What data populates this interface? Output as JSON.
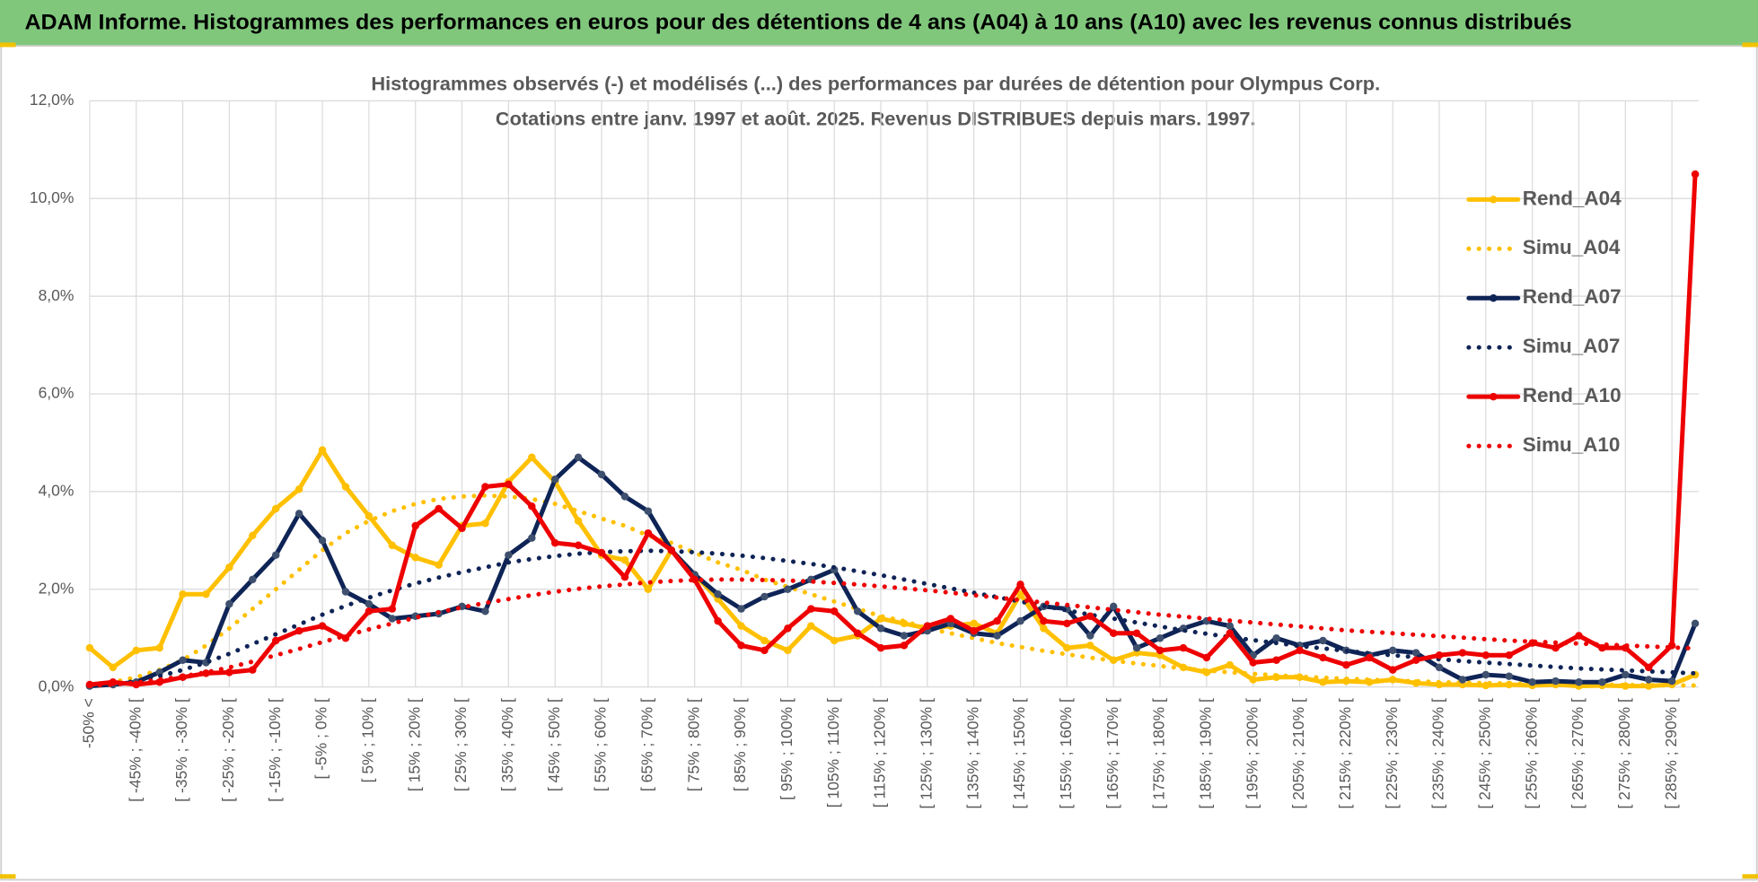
{
  "chart_data": {
    "type": "line",
    "title": "ADAM Informe. Histogrammes des performances en euros pour des détentions de 4 ans (A04) à 10 ans (A10) avec les revenus connus distribués",
    "subtitle": [
      "Histogrammes observés (-) et modélisés (...) des performances par durées de détention pour Olympus Corp.",
      "Cotations entre janv. 1997 et août. 2025. Revenus DISTRIBUES depuis mars. 1997."
    ],
    "categories": [
      "-50% <",
      null,
      "[ -45% ; -40% [",
      null,
      "[ -35% ; -30% [",
      null,
      "[ -25% ; -20% [",
      null,
      "[ -15% ; -10% [",
      null,
      "[ -5% ; 0% [",
      null,
      "[ 5% ; 10% [",
      null,
      "[ 15% ; 20% [",
      null,
      "[ 25% ; 30% [",
      null,
      "[ 35% ; 40% [",
      null,
      "[ 45% ; 50% [",
      null,
      "[ 55% ; 60% [",
      null,
      "[ 65% ; 70% [",
      null,
      "[ 75% ; 80% [",
      null,
      "[ 85% ; 90% [",
      null,
      "[ 95% ; 100% [",
      null,
      "[ 105% ; 110% [",
      null,
      "[ 115% ; 120% [",
      null,
      "[ 125% ; 130% [",
      null,
      "[ 135% ; 140% [",
      null,
      "[ 145% ; 150% [",
      null,
      "[ 155% ; 160% [",
      null,
      "[ 165% ; 170% [",
      null,
      "[ 175% ; 180% [",
      null,
      "[ 185% ; 190% [",
      null,
      "[ 195% ; 200% [",
      null,
      "[ 205% ; 210% [",
      null,
      "[ 215% ; 220% [",
      null,
      "[ 225% ; 230% [",
      null,
      "[ 235% ; 240% [",
      null,
      "[ 245% ; 250% [",
      null,
      "[ 255% ; 260% [",
      null,
      "[ 265% ; 270% [",
      null,
      "[ 275% ; 280% [",
      null,
      "[ 285% ; 290% [",
      null
    ],
    "series": [
      {
        "name": "Rend_A04",
        "color": "#ffc000",
        "line_style": "solid",
        "values": [
          0.8,
          0.4,
          0.75,
          0.8,
          1.9,
          1.9,
          2.45,
          3.1,
          3.65,
          4.05,
          4.85,
          4.1,
          3.5,
          2.9,
          2.65,
          2.5,
          3.3,
          3.35,
          4.2,
          4.7,
          4.2,
          3.4,
          2.7,
          2.6,
          2.0,
          2.8,
          2.3,
          1.8,
          1.25,
          0.95,
          0.75,
          1.25,
          0.95,
          1.05,
          1.4,
          1.3,
          1.2,
          1.25,
          1.3,
          1.1,
          1.9,
          1.2,
          0.8,
          0.85,
          0.55,
          0.7,
          0.65,
          0.4,
          0.3,
          0.45,
          0.15,
          0.2,
          0.2,
          0.1,
          0.12,
          0.1,
          0.15,
          0.08,
          0.05,
          0.05,
          0.03,
          0.05,
          0.03,
          0.05,
          0.02,
          0.03,
          0.02,
          0.02,
          0.05,
          0.25
        ]
      },
      {
        "name": "Simu_A04",
        "color": "#ffc000",
        "line_style": "dotted",
        "values": [
          0.05,
          0.1,
          0.2,
          0.35,
          0.55,
          0.85,
          1.2,
          1.6,
          2.0,
          2.4,
          2.8,
          3.15,
          3.4,
          3.6,
          3.75,
          3.85,
          3.9,
          3.92,
          3.9,
          3.85,
          3.75,
          3.6,
          3.45,
          3.3,
          3.1,
          2.95,
          2.75,
          2.55,
          2.4,
          2.2,
          2.05,
          1.9,
          1.75,
          1.6,
          1.45,
          1.35,
          1.2,
          1.1,
          1.0,
          0.9,
          0.82,
          0.74,
          0.67,
          0.6,
          0.54,
          0.48,
          0.43,
          0.38,
          0.34,
          0.3,
          0.27,
          0.24,
          0.21,
          0.19,
          0.17,
          0.15,
          0.13,
          0.12,
          0.1,
          0.09,
          0.08,
          0.07,
          0.06,
          0.06,
          0.05,
          0.05,
          0.04,
          0.04,
          0.03,
          0.03
        ]
      },
      {
        "name": "Rend_A07",
        "color": "#0f2456",
        "line_style": "solid",
        "values": [
          0.02,
          0.05,
          0.1,
          0.3,
          0.55,
          0.5,
          1.7,
          2.2,
          2.7,
          3.55,
          3.0,
          1.95,
          1.7,
          1.4,
          1.45,
          1.5,
          1.65,
          1.55,
          2.7,
          3.05,
          4.25,
          4.7,
          4.35,
          3.9,
          3.6,
          2.8,
          2.3,
          1.9,
          1.6,
          1.85,
          2.0,
          2.2,
          2.4,
          1.55,
          1.2,
          1.05,
          1.15,
          1.3,
          1.1,
          1.05,
          1.35,
          1.65,
          1.6,
          1.05,
          1.65,
          0.8,
          1.0,
          1.2,
          1.35,
          1.25,
          0.65,
          1.0,
          0.85,
          0.95,
          0.75,
          0.65,
          0.75,
          0.7,
          0.4,
          0.15,
          0.25,
          0.22,
          0.1,
          0.12,
          0.1,
          0.1,
          0.25,
          0.15,
          0.12,
          1.3
        ]
      },
      {
        "name": "Simu_A07",
        "color": "#0f2456",
        "line_style": "dotted",
        "values": [
          0.03,
          0.06,
          0.12,
          0.22,
          0.35,
          0.5,
          0.68,
          0.88,
          1.08,
          1.28,
          1.48,
          1.66,
          1.83,
          1.98,
          2.12,
          2.24,
          2.35,
          2.45,
          2.55,
          2.62,
          2.68,
          2.73,
          2.76,
          2.78,
          2.79,
          2.78,
          2.76,
          2.73,
          2.69,
          2.64,
          2.58,
          2.52,
          2.45,
          2.37,
          2.29,
          2.2,
          2.11,
          2.02,
          1.93,
          1.84,
          1.75,
          1.66,
          1.57,
          1.48,
          1.4,
          1.32,
          1.24,
          1.16,
          1.09,
          1.02,
          0.96,
          0.9,
          0.84,
          0.79,
          0.74,
          0.69,
          0.65,
          0.61,
          0.57,
          0.53,
          0.5,
          0.47,
          0.44,
          0.41,
          0.38,
          0.36,
          0.34,
          0.32,
          0.3,
          0.28
        ]
      },
      {
        "name": "Rend_A10",
        "color": "#ee0000",
        "line_style": "solid",
        "values": [
          0.05,
          0.1,
          0.05,
          0.1,
          0.2,
          0.28,
          0.3,
          0.35,
          0.95,
          1.15,
          1.25,
          1.0,
          1.55,
          1.6,
          3.3,
          3.65,
          3.25,
          4.1,
          4.15,
          3.7,
          2.95,
          2.9,
          2.75,
          2.25,
          3.15,
          2.8,
          2.2,
          1.35,
          0.85,
          0.75,
          1.2,
          1.6,
          1.55,
          1.1,
          0.8,
          0.85,
          1.25,
          1.4,
          1.15,
          1.35,
          2.1,
          1.35,
          1.3,
          1.45,
          1.1,
          1.1,
          0.75,
          0.8,
          0.6,
          1.1,
          0.5,
          0.55,
          0.75,
          0.6,
          0.45,
          0.6,
          0.35,
          0.55,
          0.65,
          0.7,
          0.65,
          0.65,
          0.9,
          0.8,
          1.05,
          0.8,
          0.8,
          0.4,
          0.85,
          10.5
        ]
      },
      {
        "name": "Simu_A10",
        "color": "#ee0000",
        "line_style": "dotted",
        "values": [
          0.03,
          0.05,
          0.09,
          0.15,
          0.22,
          0.3,
          0.4,
          0.52,
          0.65,
          0.78,
          0.92,
          1.05,
          1.18,
          1.3,
          1.42,
          1.53,
          1.63,
          1.72,
          1.8,
          1.88,
          1.95,
          2.01,
          2.06,
          2.1,
          2.14,
          2.17,
          2.19,
          2.2,
          2.2,
          2.19,
          2.18,
          2.16,
          2.13,
          2.1,
          2.06,
          2.02,
          1.98,
          1.93,
          1.88,
          1.83,
          1.78,
          1.73,
          1.68,
          1.63,
          1.58,
          1.53,
          1.48,
          1.44,
          1.4,
          1.36,
          1.32,
          1.28,
          1.24,
          1.2,
          1.16,
          1.13,
          1.1,
          1.07,
          1.04,
          1.01,
          0.98,
          0.95,
          0.93,
          0.91,
          0.89,
          0.87,
          0.85,
          0.83,
          0.81,
          0.79
        ]
      }
    ],
    "ylim": [
      0,
      12
    ],
    "yticks": [
      {
        "value": 0,
        "label": "0,0%"
      },
      {
        "value": 2,
        "label": "2,0%"
      },
      {
        "value": 4,
        "label": "4,0%"
      },
      {
        "value": 6,
        "label": "6,0%"
      },
      {
        "value": 8,
        "label": "8,0%"
      },
      {
        "value": 10,
        "label": "10,0%"
      },
      {
        "value": 12,
        "label": "12,0%"
      }
    ],
    "grid": true,
    "legend": "right"
  }
}
